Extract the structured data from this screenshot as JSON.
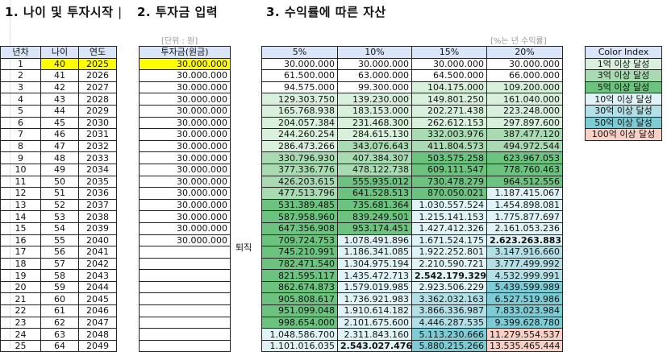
{
  "titles": {
    "section1": "1. 나이 및 투자시작 ",
    "section1_cut": "|",
    "section2": "2. 투자금 입력",
    "section3": "3. 수익률에 따른 자산"
  },
  "notes": {
    "unit": "[단위 : 원]",
    "rate": "[%는 년 수익률]"
  },
  "retire_label": "퇴직",
  "colors": {
    "header": "#dae6f8",
    "highlight_input": "#ffff00",
    "tiers": [
      "#ffffff",
      "#d9f0dc",
      "#a8dbb1",
      "#6cc27f",
      "#e0f3f6",
      "#b3e0e6",
      "#7dccd5",
      "#f9d0c6"
    ]
  },
  "table1": {
    "headers": [
      "년차",
      "나이",
      "연도"
    ],
    "rows": [
      [
        1,
        40,
        2025
      ],
      [
        2,
        41,
        2026
      ],
      [
        3,
        42,
        2027
      ],
      [
        4,
        43,
        2028
      ],
      [
        5,
        44,
        2029
      ],
      [
        6,
        45,
        2030
      ],
      [
        7,
        46,
        2031
      ],
      [
        8,
        47,
        2032
      ],
      [
        9,
        48,
        2033
      ],
      [
        10,
        49,
        2034
      ],
      [
        11,
        50,
        2035
      ],
      [
        12,
        51,
        2036
      ],
      [
        13,
        52,
        2037
      ],
      [
        14,
        53,
        2038
      ],
      [
        15,
        54,
        2039
      ],
      [
        16,
        55,
        2040
      ],
      [
        17,
        56,
        2041
      ],
      [
        18,
        57,
        2042
      ],
      [
        19,
        58,
        2043
      ],
      [
        20,
        59,
        2044
      ],
      [
        21,
        60,
        2045
      ],
      [
        22,
        61,
        2046
      ],
      [
        23,
        62,
        2047
      ],
      [
        24,
        63,
        2048
      ],
      [
        25,
        64,
        2049
      ]
    ]
  },
  "table2": {
    "header": "투자금(원금)",
    "values": [
      "30.000.000",
      "30.000.000",
      "30.000.000",
      "30.000.000",
      "30.000.000",
      "30.000.000",
      "30.000.000",
      "30.000.000",
      "30.000.000",
      "30.000.000",
      "30.000.000",
      "30.000.000",
      "30.000.000",
      "30.000.000",
      "30.000.000",
      "30.000.000",
      "",
      "",
      "",
      "",
      "",
      "",
      "",
      "",
      ""
    ]
  },
  "table3": {
    "headers": [
      "5%",
      "10%",
      "15%",
      "20%"
    ],
    "columns": [
      [
        "30.000.000",
        "61.500.000",
        "94.575.000",
        "129.303.750",
        "165.768.938",
        "204.057.384",
        "244.260.254",
        "286.473.266",
        "330.796.930",
        "377.336.776",
        "426.203.615",
        "477.513.796",
        "531.389.485",
        "587.958.960",
        "647.356.908",
        "709.724.753",
        "745.210.991",
        "782.471.540",
        "821.595.117",
        "862.674.873",
        "905.808.617",
        "951.099.048",
        "998.654.000",
        "1.048.586.700",
        "1.101.016.035"
      ],
      [
        "30.000.000",
        "63.000.000",
        "99.300.000",
        "139.230.000",
        "183.153.000",
        "231.468.300",
        "284.615.130",
        "343.076.643",
        "407.384.307",
        "478.122.738",
        "555.935.012",
        "641.528.513",
        "735.681.364",
        "839.249.501",
        "953.174.451",
        "1.078.491.896",
        "1.186.341.085",
        "1.304.975.194",
        "1.435.472.713",
        "1.579.019.985",
        "1.736.921.983",
        "1.910.614.182",
        "2.101.675.600",
        "2.311.843.160",
        "2.543.027.476"
      ],
      [
        "30.000.000",
        "64.500.000",
        "104.175.000",
        "149.801.250",
        "202.271.438",
        "262.612.153",
        "332.003.976",
        "411.804.573",
        "503.575.258",
        "609.111.547",
        "730.478.279",
        "870.050.021",
        "1.030.557.524",
        "1.215.141.153",
        "1.427.412.326",
        "1.671.524.175",
        "1.922.252.801",
        "2.210.590.721",
        "2.542.179.329",
        "2.923.506.229",
        "3.362.032.163",
        "3.866.336.987",
        "4.446.287.535",
        "5.113.230.666",
        "5.880.215.266"
      ],
      [
        "30.000.000",
        "66.000.000",
        "109.200.000",
        "161.040.000",
        "223.248.000",
        "297.897.600",
        "387.477.120",
        "494.972.544",
        "623.967.053",
        "778.760.463",
        "964.512.556",
        "1.187.415.067",
        "1.454.898.081",
        "1.775.877.697",
        "2.161.053.236",
        "2.623.263.883",
        "3.147.916.660",
        "3.777.499.992",
        "4.532.999.991",
        "5.439.599.989",
        "6.527.519.986",
        "7.833.023.984",
        "9.399.628.780",
        "11.279.554.537",
        "13.535.465.444"
      ]
    ],
    "bold_year": [
      null,
      25,
      19,
      16
    ]
  },
  "color_index": {
    "header": "Color Index",
    "items": [
      "1억 이상 달성",
      "3억 이상 달성",
      "5억 이상 달성",
      "10억 이상 달성",
      "30억 이상 달성",
      "50억 이상 달성",
      "100억 이상 달성"
    ]
  }
}
